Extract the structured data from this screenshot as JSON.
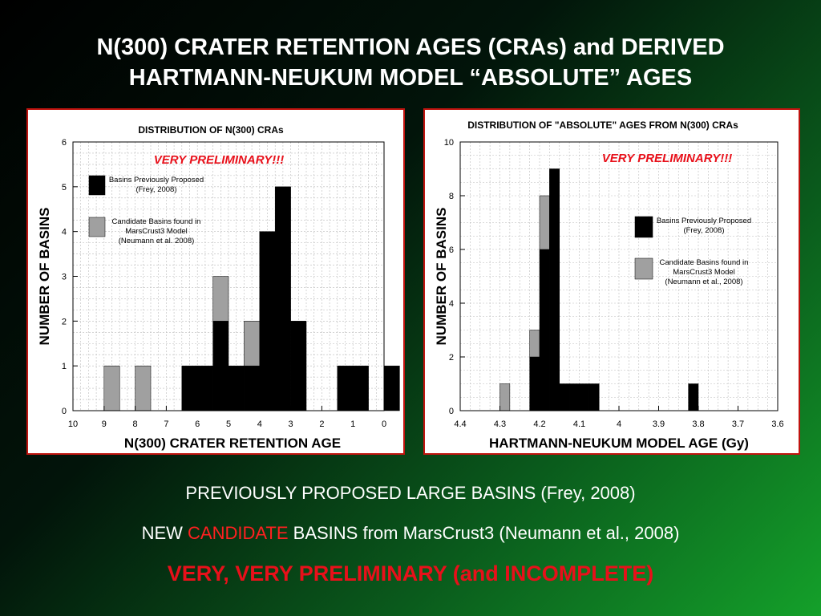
{
  "slide": {
    "title_line1": "N(300) CRATER RETENTION AGES (CRAs) and DERIVED",
    "title_line2": "HARTMANN-NEUKUM MODEL “ABSOLUTE” AGES",
    "caption1": "PREVIOUSLY PROPOSED LARGE BASINS (Frey, 2008)",
    "caption2_prefix": "NEW ",
    "caption2_accent": "CANDIDATE",
    "caption2_suffix": " BASINS from MarsCrust3 (Neumann et al., 2008)",
    "warning": "VERY, VERY PRELIMINARY (and INCOMPLETE)"
  },
  "colors": {
    "previous": "#000000",
    "candidate": "#a0a0a0",
    "grid": "#bbbbbb",
    "stamp": "#e8101a",
    "caption_accent": "#ff2020"
  },
  "chart_data": [
    {
      "type": "bar",
      "stacked": true,
      "title": "DISTRIBUTION OF N(300) CRAs",
      "annotation": "VERY PRELIMINARY!!!",
      "xlabel": "N(300) CRATER RETENTION AGE",
      "ylabel": "NUMBER OF BASINS",
      "xlim": [
        10,
        0
      ],
      "ylim": [
        0,
        6
      ],
      "xticks": [
        10,
        9,
        8,
        7,
        6,
        5,
        4,
        3,
        2,
        1,
        0
      ],
      "yticks": [
        0,
        1,
        2,
        3,
        4,
        5,
        6
      ],
      "grid": true,
      "bin_width": 0.5,
      "legend": [
        {
          "name": "Basins Previously Proposed",
          "line2": "(Frey, 2008)"
        },
        {
          "name": "Candidate Basins found in",
          "line2": "MarsCrust3 Model",
          "line3": "(Neumann et al. 2008)"
        }
      ],
      "bins": [
        9,
        8,
        6.5,
        6,
        5.5,
        5,
        4.5,
        4,
        3.5,
        3,
        1.5,
        1,
        0
      ],
      "series": [
        {
          "name": "Basins Previously Proposed",
          "values": [
            0,
            0,
            1,
            1,
            2,
            1,
            1,
            4,
            5,
            2,
            1,
            1,
            1
          ]
        },
        {
          "name": "Candidate Basins found in MarsCrust3 Model",
          "values": [
            1,
            1,
            0,
            0,
            1,
            0,
            1,
            0,
            0,
            0,
            0,
            0,
            0
          ]
        }
      ]
    },
    {
      "type": "bar",
      "stacked": true,
      "title": "DISTRIBUTION OF \"ABSOLUTE\" AGES FROM N(300) CRAs",
      "annotation": "VERY PRELIMINARY!!!",
      "xlabel": "HARTMANN-NEUKUM MODEL AGE (Gy)",
      "ylabel": "NUMBER OF BASINS",
      "xlim": [
        4.4,
        3.6
      ],
      "ylim": [
        0,
        10
      ],
      "xticks": [
        4.4,
        4.3,
        4.2,
        4.1,
        4,
        3.9,
        3.8,
        3.7,
        3.6
      ],
      "yticks": [
        0,
        2,
        4,
        6,
        8,
        10
      ],
      "grid": true,
      "bin_width": 0.025,
      "legend": [
        {
          "name": "Basins Previously Proposed",
          "line2": "(Frey, 2008)"
        },
        {
          "name": "Candidate Basins found in",
          "line2": "MarsCrust3 Model",
          "line3": "(Neumann et al., 2008)"
        }
      ],
      "bins": [
        4.3,
        4.225,
        4.2,
        4.175,
        4.15,
        4.125,
        4.1,
        4.075,
        3.825
      ],
      "series": [
        {
          "name": "Basins Previously Proposed",
          "values": [
            0,
            2,
            6,
            9,
            1,
            1,
            1,
            1,
            1
          ]
        },
        {
          "name": "Candidate Basins found in MarsCrust3 Model",
          "values": [
            1,
            1,
            2,
            0,
            0,
            0,
            0,
            0,
            0
          ]
        }
      ]
    }
  ]
}
